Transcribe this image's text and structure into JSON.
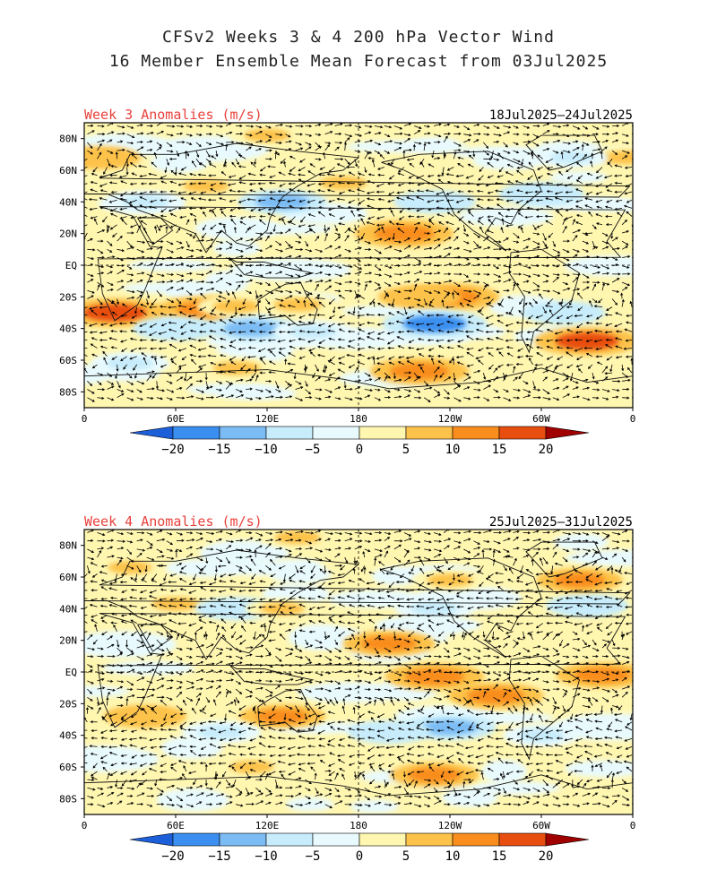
{
  "title": {
    "line1": "CFSv2 Weeks 3 & 4 200 hPa Vector Wind",
    "line2": "16 Member Ensemble Mean Forecast from 03Jul2025"
  },
  "colors": {
    "label": "#e8413c",
    "scale": [
      "#1c5fd8",
      "#3a8ff0",
      "#7cbcf5",
      "#c7ecfb",
      "#e8fafe",
      "#fff6b0",
      "#fdc24a",
      "#f98d1e",
      "#e84e10",
      "#c81408",
      "#a00000"
    ]
  },
  "axes": {
    "lat_ticks": [
      "80N",
      "60N",
      "40N",
      "20N",
      "EQ",
      "20S",
      "40S",
      "60S",
      "80S"
    ],
    "lon_ticks": [
      "0",
      "60E",
      "120E",
      "180",
      "120W",
      "60W",
      "0"
    ]
  },
  "colorbar": {
    "ticks": [
      "−20",
      "−15",
      "−10",
      "−5",
      "0",
      "5",
      "10",
      "15",
      "20"
    ]
  },
  "panels": [
    {
      "label": "Week 3 Anomalies (m/s)",
      "dates": "18Jul2025–24Jul2025",
      "anomalies": [
        {
          "lon": 80,
          "lat": -28,
          "value": 14
        },
        {
          "lon": 20,
          "lat": -30,
          "value": 16
        },
        {
          "lon": 100,
          "lat": -26,
          "value": 8
        },
        {
          "lon": 140,
          "lat": -25,
          "value": 8
        },
        {
          "lon": 60,
          "lat": -40,
          "value": -10
        },
        {
          "lon": 110,
          "lat": -40,
          "value": -12
        },
        {
          "lon": 150,
          "lat": -42,
          "value": -8
        },
        {
          "lon": 40,
          "lat": 40,
          "value": -8
        },
        {
          "lon": 130,
          "lat": 40,
          "value": -11
        },
        {
          "lon": 230,
          "lat": 40,
          "value": -9
        },
        {
          "lon": 300,
          "lat": 45,
          "value": -10
        },
        {
          "lon": 80,
          "lat": 50,
          "value": 7
        },
        {
          "lon": 170,
          "lat": 52,
          "value": 8
        },
        {
          "lon": 210,
          "lat": 20,
          "value": 14
        },
        {
          "lon": 240,
          "lat": -20,
          "value": 14
        },
        {
          "lon": 220,
          "lat": -20,
          "value": 9
        },
        {
          "lon": 230,
          "lat": -37,
          "value": -16
        },
        {
          "lon": 330,
          "lat": -48,
          "value": 16
        },
        {
          "lon": 315,
          "lat": -30,
          "value": -9
        },
        {
          "lon": 220,
          "lat": -67,
          "value": 14
        },
        {
          "lon": 100,
          "lat": -65,
          "value": 8
        },
        {
          "lon": 30,
          "lat": -62,
          "value": -8
        },
        {
          "lon": 10,
          "lat": 68,
          "value": 9
        },
        {
          "lon": 355,
          "lat": 68,
          "value": 8
        },
        {
          "lon": 320,
          "lat": 68,
          "value": -6
        },
        {
          "lon": 120,
          "lat": 82,
          "value": 7
        }
      ]
    },
    {
      "label": "Week 4 Anomalies (m/s)",
      "dates": "25Jul2025–31Jul2025",
      "anomalies": [
        {
          "lon": 60,
          "lat": 43,
          "value": 8
        },
        {
          "lon": 100,
          "lat": 40,
          "value": -9
        },
        {
          "lon": 130,
          "lat": 40,
          "value": 6
        },
        {
          "lon": 230,
          "lat": 40,
          "value": -8
        },
        {
          "lon": 330,
          "lat": 42,
          "value": -9
        },
        {
          "lon": 325,
          "lat": 58,
          "value": 10
        },
        {
          "lon": 240,
          "lat": 58,
          "value": 7
        },
        {
          "lon": 200,
          "lat": 18,
          "value": 12
        },
        {
          "lon": 230,
          "lat": -3,
          "value": 14
        },
        {
          "lon": 270,
          "lat": -15,
          "value": 13
        },
        {
          "lon": 340,
          "lat": -2,
          "value": 12
        },
        {
          "lon": 40,
          "lat": -28,
          "value": 9
        },
        {
          "lon": 130,
          "lat": -28,
          "value": 10
        },
        {
          "lon": 90,
          "lat": -38,
          "value": -8
        },
        {
          "lon": 240,
          "lat": -35,
          "value": -12
        },
        {
          "lon": 200,
          "lat": -38,
          "value": -9
        },
        {
          "lon": 230,
          "lat": -65,
          "value": 11
        },
        {
          "lon": 110,
          "lat": -60,
          "value": 6
        },
        {
          "lon": 30,
          "lat": 66,
          "value": 6
        },
        {
          "lon": 140,
          "lat": 85,
          "value": 7
        },
        {
          "lon": 300,
          "lat": -40,
          "value": -7
        }
      ]
    }
  ]
}
